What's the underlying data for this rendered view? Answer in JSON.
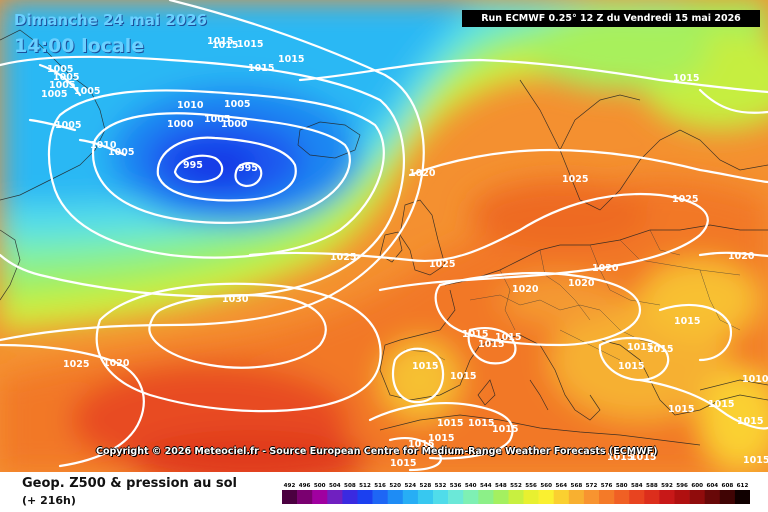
{
  "header": {
    "date": "Dimanche 24 mai 2026",
    "time": "14:00 locale",
    "run": "Run ECMWF 0.25° 12 Z du Vendredi 15 mai 2026"
  },
  "copyright": "Copyright © 2026 Meteociel.fr - Source European Centre for Medium-Range Weather Forecasts (ECMWF)",
  "footer": {
    "product": "Geop. Z500 & pression au sol",
    "forecast_hour": "(+ 216h)"
  },
  "legend": {
    "ticks": [
      "492",
      "496",
      "500",
      "504",
      "508",
      "512",
      "516",
      "520",
      "524",
      "528",
      "532",
      "536",
      "540",
      "544",
      "548",
      "552",
      "556",
      "560",
      "564",
      "568",
      "572",
      "576",
      "580",
      "584",
      "588",
      "592",
      "596",
      "600",
      "604",
      "608",
      "612"
    ],
    "colors": [
      "#4b0040",
      "#7a0070",
      "#a000a0",
      "#7020c0",
      "#3a2ae0",
      "#1b40f0",
      "#1e66f5",
      "#1e8cf5",
      "#27aef5",
      "#37c8f0",
      "#50dcea",
      "#6be8d8",
      "#7ef0b4",
      "#8cf088",
      "#a4f060",
      "#c8f040",
      "#e8f030",
      "#faf030",
      "#fad030",
      "#f8b030",
      "#f89430",
      "#f47a28",
      "#f06024",
      "#e84420",
      "#dc2e1c",
      "#c81818",
      "#b01010",
      "#900c0c",
      "#680808",
      "#400404",
      "#100000"
    ]
  },
  "pressure_labels": [
    "1015",
    "1015",
    "1015",
    "1015",
    "1015",
    "1005",
    "1005",
    "1005",
    "1005",
    "1005",
    "1005",
    "1010",
    "1005",
    "1000",
    "1005",
    "1000",
    "1010",
    "1005",
    "995",
    "995",
    "1020",
    "1015",
    "1025",
    "1025",
    "1025",
    "1025",
    "1020",
    "1020",
    "1020",
    "1020",
    "1030",
    "1025",
    "1020",
    "1015",
    "1015",
    "1015",
    "1015",
    "1015",
    "1015",
    "1015",
    "1015",
    "1015",
    "1015",
    "1015",
    "1015",
    "1015",
    "1015",
    "1015",
    "1015",
    "1015",
    "1015",
    "1015",
    "1015",
    "1015",
    "1010"
  ]
}
